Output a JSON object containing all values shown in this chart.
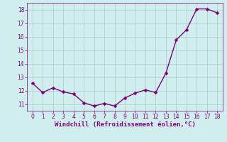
{
  "x": [
    0,
    1,
    2,
    3,
    4,
    5,
    6,
    7,
    8,
    9,
    10,
    11,
    12,
    13,
    14,
    15,
    16,
    17,
    18
  ],
  "y": [
    12.55,
    11.85,
    12.2,
    11.9,
    11.75,
    11.1,
    10.85,
    11.05,
    10.85,
    11.45,
    11.8,
    12.05,
    11.85,
    13.3,
    15.75,
    16.5,
    18.05,
    18.05,
    17.75
  ],
  "line_color": "#7b007b",
  "marker_color": "#7b007b",
  "bg_color": "#d0eeee",
  "grid_color": "#aacaca",
  "tick_color": "#7b007b",
  "xlabel": "Windchill (Refroidissement éolien,°C)",
  "xlabel_color": "#7b007b",
  "xlim": [
    -0.5,
    18.5
  ],
  "ylim": [
    10.5,
    18.5
  ],
  "yticks": [
    11,
    12,
    13,
    14,
    15,
    16,
    17,
    18
  ],
  "xticks": [
    0,
    1,
    2,
    3,
    4,
    5,
    6,
    7,
    8,
    9,
    10,
    11,
    12,
    13,
    14,
    15,
    16,
    17,
    18
  ],
  "font_size": 5.5,
  "xlabel_fontsize": 6.5,
  "marker_size": 2.5,
  "line_width": 1.0
}
